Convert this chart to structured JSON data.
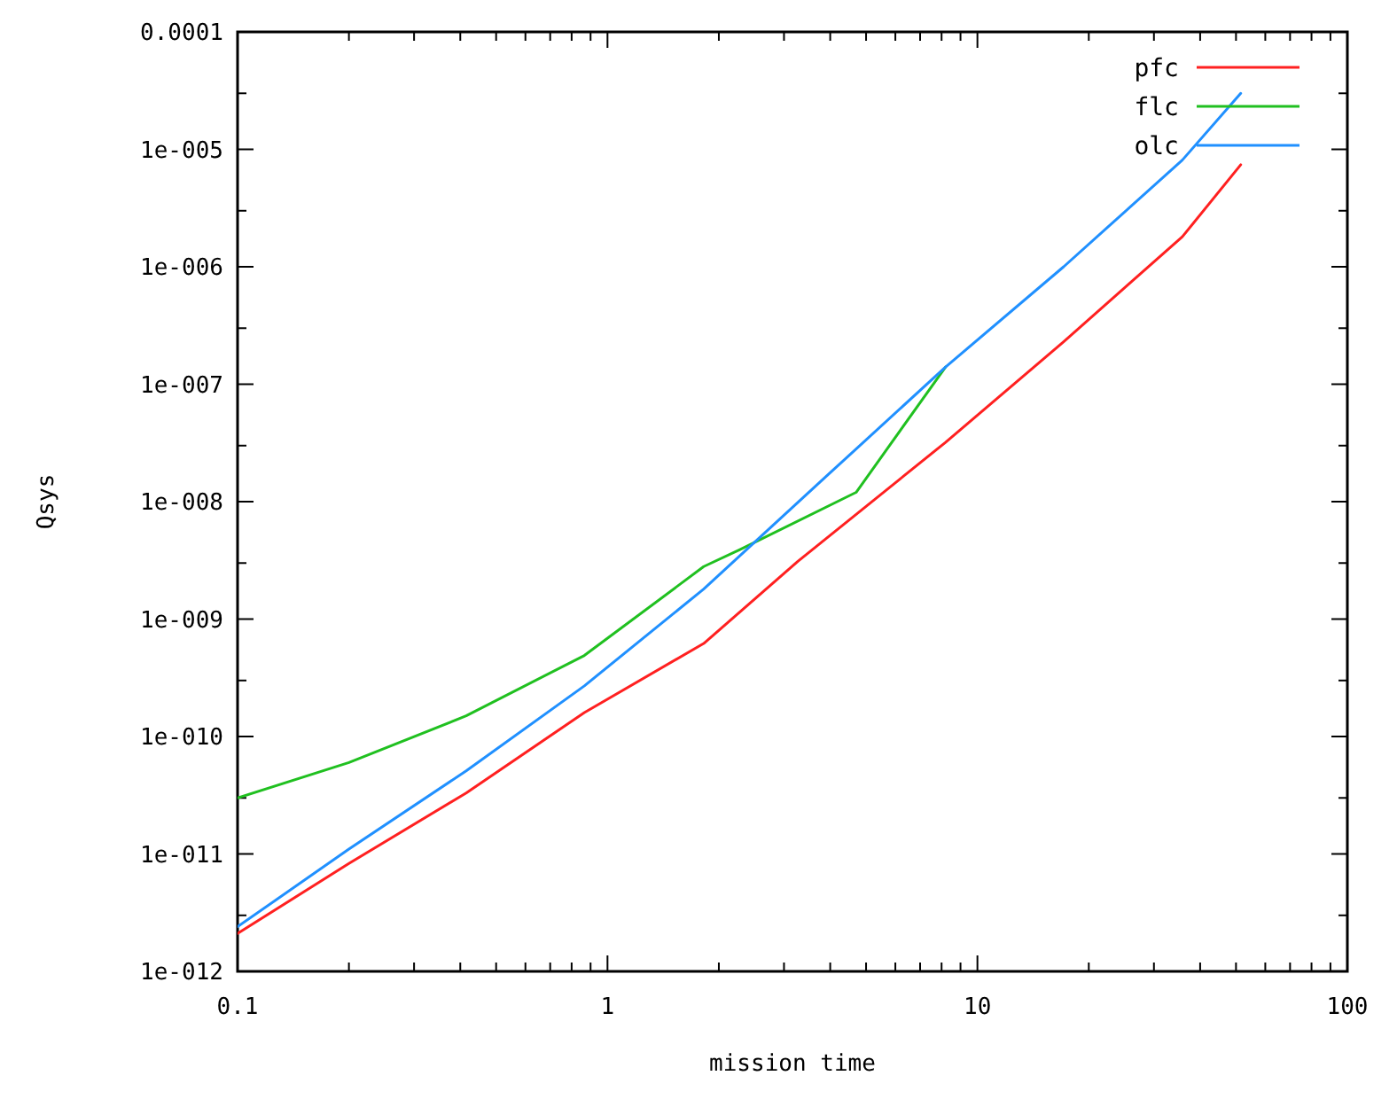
{
  "chart_data": {
    "type": "line",
    "xlabel": "mission time",
    "ylabel": "Qsys",
    "log": "xy",
    "legend": "top right",
    "grid": false,
    "line_style": "solid",
    "marker": "none",
    "xlim": [
      0.1,
      100
    ],
    "ylim": [
      1e-12,
      0.0001
    ],
    "xticks": [
      0.1,
      {
        "value": 0.2,
        "label": null
      },
      {
        "value": 0.3,
        "label": null
      },
      {
        "value": 0.4,
        "label": null
      },
      {
        "value": 0.5,
        "label": null
      },
      {
        "value": 0.6,
        "label": null
      },
      {
        "value": 0.7,
        "label": null
      },
      {
        "value": 0.8,
        "label": null
      },
      {
        "value": 0.9,
        "label": null
      },
      1,
      {
        "value": 2,
        "label": null
      },
      {
        "value": 3,
        "label": null
      },
      {
        "value": 4,
        "label": null
      },
      {
        "value": 5,
        "label": null
      },
      {
        "value": 6,
        "label": null
      },
      {
        "value": 7,
        "label": null
      },
      {
        "value": 8,
        "label": null
      },
      {
        "value": 9,
        "label": null
      },
      10,
      {
        "value": 20,
        "label": null
      },
      {
        "value": 30,
        "label": null
      },
      {
        "value": 40,
        "label": null
      },
      {
        "value": 50,
        "label": null
      },
      {
        "value": 60,
        "label": null
      },
      {
        "value": 70,
        "label": null
      },
      {
        "value": 80,
        "label": null
      },
      {
        "value": 90,
        "label": null
      },
      100
    ],
    "yticks": [
      {
        "value": 1e-12,
        "label": "1e-012"
      },
      {
        "value": 3e-12,
        "label": null
      },
      {
        "value": 1e-11,
        "label": "1e-011"
      },
      {
        "value": 3e-11,
        "label": null
      },
      {
        "value": 1e-10,
        "label": "1e-010"
      },
      {
        "value": 3e-10,
        "label": null
      },
      {
        "value": 1e-09,
        "label": "1e-009"
      },
      {
        "value": 3e-09,
        "label": null
      },
      {
        "value": 1e-08,
        "label": "1e-008"
      },
      {
        "value": 3e-08,
        "label": null
      },
      {
        "value": 1e-07,
        "label": "1e-007"
      },
      {
        "value": 3e-07,
        "label": null
      },
      {
        "value": 1e-06,
        "label": "1e-006"
      },
      {
        "value": 3e-06,
        "label": null
      },
      {
        "value": 1e-05,
        "label": "1e-005"
      },
      {
        "value": 3e-05,
        "label": null
      },
      {
        "value": 0.0001,
        "label": "0.0001"
      }
    ],
    "series": [
      {
        "name": "pfc",
        "color": "#ff2020",
        "x": [
          0.1,
          0.2,
          0.415,
          0.866,
          1.82,
          3.27,
          8.2,
          17.1,
          35.8,
          51.5
        ],
        "values": [
          2.1e-12,
          8.3e-12,
          3.3e-11,
          1.6e-10,
          6.2e-10,
          3.1e-09,
          3.2e-08,
          2.3e-07,
          1.8e-06,
          7.4e-06
        ]
      },
      {
        "name": "flc",
        "color": "#20c020",
        "x": [
          0.1,
          0.2,
          0.415,
          0.866,
          1.82,
          2.28,
          4.7,
          8.2
        ],
        "values": [
          3e-11,
          6e-11,
          1.5e-10,
          4.9e-10,
          2.8e-09,
          3.9e-09,
          1.2e-08,
          1.4e-07
        ]
      },
      {
        "name": "olc",
        "color": "#2090ff",
        "x": [
          0.1,
          0.2,
          0.415,
          0.866,
          1.82,
          3.95,
          8.2,
          17.1,
          35.8,
          51.5
        ],
        "values": [
          2.4e-12,
          1.1e-11,
          5.1e-11,
          2.7e-10,
          1.8e-09,
          1.7e-08,
          1.4e-07,
          1e-06,
          8.1e-06,
          3e-05
        ]
      }
    ]
  }
}
